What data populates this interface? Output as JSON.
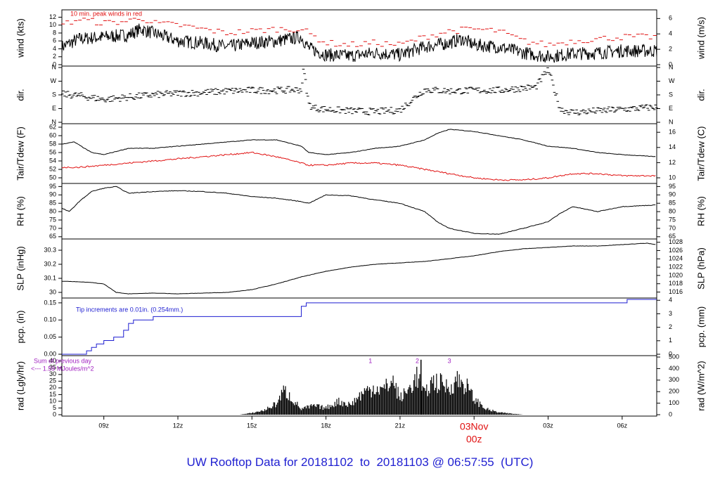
{
  "footer_title": "UW Rooftop Data for 20181102  to  20181103 @ 06:57:55  (UTC)",
  "colors": {
    "frame": "#000000",
    "series_main": "#000000",
    "dewpoint": "#e01010",
    "peak": "#e01010",
    "precip": "#1f1fd1",
    "radiation_note": "#a020c0",
    "date_label": "#e01010",
    "title": "#1f1fd1"
  },
  "x_axis": {
    "start_hour": 7.3,
    "end_hour": 31.4,
    "ticks": [
      {
        "hour": 9,
        "label": "09z"
      },
      {
        "hour": 12,
        "label": "12z"
      },
      {
        "hour": 15,
        "label": "15z"
      },
      {
        "hour": 18,
        "label": "18z"
      },
      {
        "hour": 21,
        "label": "21z"
      },
      {
        "hour": 27,
        "label": "03z"
      },
      {
        "hour": 30,
        "label": "06z"
      }
    ],
    "date_marker": {
      "hour": 24,
      "line1": "03Nov",
      "line2": "00z"
    }
  },
  "chart_data": [
    {
      "type": "line",
      "id": "wind",
      "ylabel_left": "wind (kts)",
      "ylabel_right": "wind (m/s)",
      "ylim": [
        0,
        13.5
      ],
      "left_ticks": [
        0,
        2,
        4,
        6,
        8,
        10,
        12
      ],
      "right_ticks": [
        0,
        2,
        4,
        6
      ],
      "annotation": "10 min. peak winds in red",
      "series": [
        {
          "name": "wind",
          "x": [
            7.3,
            8,
            9,
            10,
            10.5,
            11,
            11.5,
            12,
            13,
            14,
            15,
            16,
            16.5,
            17,
            17.3,
            18,
            19,
            20,
            21,
            22,
            22.5,
            23,
            23.5,
            24,
            25,
            26,
            27,
            28,
            29,
            30,
            31.4
          ],
          "y": [
            4.5,
            6.5,
            7,
            7.5,
            9,
            8,
            7,
            6,
            5.5,
            4.5,
            5.5,
            6,
            6.5,
            7,
            4.2,
            2.5,
            2.2,
            3,
            2.5,
            4.5,
            5,
            5.5,
            6.5,
            5,
            4.5,
            3,
            2,
            2.8,
            3,
            3.5,
            3.5
          ]
        },
        {
          "name": "peak",
          "x": [
            7.3,
            8,
            9,
            10,
            10.5,
            11,
            12,
            13,
            14,
            15,
            16,
            17,
            18,
            19,
            20,
            21,
            22,
            23,
            24,
            25,
            26,
            27,
            28,
            29,
            30,
            31.4
          ],
          "y": [
            10,
            11.5,
            10.5,
            11,
            12,
            10.5,
            10,
            9,
            8,
            8.5,
            9,
            9,
            5.5,
            5,
            5.5,
            5,
            7,
            8.5,
            9,
            8.5,
            6,
            5,
            6,
            6.5,
            7,
            7
          ]
        }
      ]
    },
    {
      "type": "scatter",
      "id": "dir",
      "ylabel_left": "dir.",
      "ylabel_right": "dir.",
      "ylim": [
        0,
        360
      ],
      "left_ticks": [
        {
          "v": 0,
          "l": "N"
        },
        {
          "v": 90,
          "l": "E"
        },
        {
          "v": 180,
          "l": "S"
        },
        {
          "v": 270,
          "l": "W"
        },
        {
          "v": 360,
          "l": "N"
        }
      ],
      "right_ticks": [
        {
          "v": 0,
          "l": "N"
        },
        {
          "v": 90,
          "l": "E"
        },
        {
          "v": 180,
          "l": "S"
        },
        {
          "v": 270,
          "l": "W"
        },
        {
          "v": 360,
          "l": "N"
        }
      ],
      "series": [
        {
          "name": "direction",
          "x": [
            7.3,
            8,
            9,
            10,
            11,
            12,
            13,
            14,
            15,
            16,
            17,
            17.1,
            17.3,
            17.5,
            18,
            19,
            20,
            21,
            21.5,
            22,
            23,
            24,
            25,
            26,
            26.5,
            27,
            27.5,
            28,
            29,
            30,
            31.4
          ],
          "y": [
            185,
            175,
            150,
            165,
            180,
            190,
            195,
            205,
            210,
            210,
            215,
            350,
            120,
            95,
            85,
            75,
            70,
            80,
            150,
            215,
            205,
            210,
            210,
            225,
            230,
            350,
            85,
            65,
            75,
            85,
            100
          ]
        }
      ]
    },
    {
      "type": "line",
      "id": "temp",
      "ylabel_left": "Tair/Tdew (F)",
      "ylabel_right": "Tair/Tdew (C)",
      "ylim": [
        49,
        62.5
      ],
      "left_ticks": [
        50,
        52,
        54,
        56,
        58,
        60,
        62
      ],
      "right_ticks": [
        10,
        12,
        14,
        16
      ],
      "series": [
        {
          "name": "Tair",
          "x": [
            7.3,
            7.8,
            8.5,
            9,
            10,
            11,
            12,
            13,
            14,
            15,
            16,
            17,
            17.3,
            18,
            19,
            20,
            21,
            22,
            22.5,
            23,
            24,
            25,
            26,
            27,
            28,
            29,
            30,
            31.4
          ],
          "y": [
            58,
            58.5,
            56,
            55.5,
            57,
            57,
            57.5,
            58,
            58.5,
            59,
            59,
            57.5,
            56,
            55.5,
            56,
            57,
            57.5,
            59,
            60.5,
            61.5,
            61,
            60,
            59,
            57.5,
            57,
            56,
            55.5,
            55
          ]
        },
        {
          "name": "Tdew",
          "x": [
            7.3,
            8,
            9,
            10,
            11,
            12,
            13,
            14,
            15,
            16,
            17,
            17.3,
            18,
            19,
            20,
            21,
            22,
            23,
            24,
            25,
            26,
            27,
            28,
            29,
            30,
            31.4
          ],
          "y": [
            52.5,
            52.5,
            53,
            53.5,
            54,
            54.5,
            55,
            55.5,
            56,
            55,
            53.5,
            53,
            53,
            53.5,
            53.5,
            53,
            52,
            51,
            50,
            49.5,
            49.5,
            50,
            51,
            51,
            50.5,
            50.5
          ]
        }
      ]
    },
    {
      "type": "line",
      "id": "rh",
      "ylabel_left": "RH (%)",
      "ylabel_right": "RH (%)",
      "ylim": [
        64.5,
        96
      ],
      "left_ticks": [
        65,
        70,
        75,
        80,
        85,
        90,
        95
      ],
      "right_ticks": [
        65,
        70,
        75,
        80,
        85,
        90,
        95
      ],
      "series": [
        {
          "name": "RH",
          "x": [
            7.3,
            7.6,
            8,
            8.5,
            9,
            9.5,
            10,
            11,
            12,
            13,
            14,
            15,
            16,
            17,
            17.3,
            18,
            19,
            20,
            21,
            22,
            22.5,
            23,
            24,
            25,
            26,
            27,
            27.5,
            28,
            29,
            30,
            31.4
          ],
          "y": [
            82,
            80,
            86,
            92,
            94,
            95,
            91,
            92,
            92.5,
            92,
            91,
            89,
            88,
            86,
            85,
            90,
            89.5,
            87,
            85,
            80,
            74,
            70,
            67,
            66.5,
            70,
            74,
            79,
            83,
            80,
            83,
            84
          ]
        }
      ]
    },
    {
      "type": "line",
      "id": "slp",
      "ylabel_left": "SLP (inHg)",
      "ylabel_right": "SLP (hPa)",
      "ylim": [
        29.97,
        30.37
      ],
      "left_ticks": [
        30.0,
        30.1,
        30.2,
        30.3
      ],
      "right_ticks": [
        1016,
        1018,
        1020,
        1022,
        1024,
        1026,
        1028
      ],
      "series": [
        {
          "name": "SLP",
          "x": [
            7.3,
            8,
            8.5,
            9,
            9.5,
            10,
            11,
            12,
            13,
            14,
            15,
            16,
            17,
            18,
            19,
            20,
            21,
            22,
            23,
            24,
            25,
            26,
            27,
            28,
            29,
            30,
            31,
            31.4
          ],
          "y": [
            30.08,
            30.075,
            30.07,
            30.06,
            30.0,
            29.99,
            29.995,
            29.99,
            29.995,
            30.0,
            30.02,
            30.06,
            30.11,
            30.15,
            30.18,
            30.2,
            30.21,
            30.22,
            30.24,
            30.26,
            30.29,
            30.31,
            30.32,
            30.33,
            30.33,
            30.34,
            30.35,
            30.34
          ]
        }
      ]
    },
    {
      "type": "line",
      "id": "pcp",
      "ylabel_left": "pcp. (in)",
      "ylabel_right": "pcp. (mm)",
      "ylim": [
        0,
        0.16
      ],
      "left_ticks": [
        {
          "v": 0,
          "l": "0.00"
        },
        {
          "v": 0.05,
          "l": "0.05"
        },
        {
          "v": 0.1,
          "l": "0.10"
        },
        {
          "v": 0.15,
          "l": "0.15"
        }
      ],
      "right_ticks": [
        0,
        1,
        2,
        3,
        4
      ],
      "annotation": "Tip increments are 0.01in. (0.254mm.)",
      "series": [
        {
          "name": "precip",
          "x": [
            7.3,
            8.3,
            8.5,
            8.7,
            9.0,
            9.4,
            9.8,
            10.0,
            10.2,
            11.0,
            17.0,
            17.2,
            30.2,
            31.4
          ],
          "y": [
            0,
            0.01,
            0.02,
            0.03,
            0.04,
            0.05,
            0.07,
            0.09,
            0.1,
            0.11,
            0.14,
            0.15,
            0.16,
            0.16
          ]
        }
      ]
    },
    {
      "type": "area",
      "id": "rad",
      "ylabel_left": "rad (Lgly/hr)",
      "ylabel_right": "rad (W/m^2)",
      "ylim": [
        0,
        43
      ],
      "left_ticks": [
        0,
        5,
        10,
        15,
        20,
        25,
        30,
        35,
        40
      ],
      "right_ticks": [
        0,
        100,
        200,
        300,
        400,
        500
      ],
      "annotation_line1": "Sum of previous day",
      "annotation_line2": "<--- 1.59 MJoules/m^2",
      "markers": [
        {
          "hour": 19.8,
          "label": "1"
        },
        {
          "hour": 21.7,
          "label": "2"
        },
        {
          "hour": 23.0,
          "label": "3"
        }
      ],
      "series": [
        {
          "name": "radiation",
          "x": [
            7.3,
            14.5,
            15,
            15.5,
            16,
            16.3,
            16.6,
            17,
            17.5,
            18,
            18.5,
            19,
            19.5,
            20,
            20.3,
            20.7,
            21,
            21.3,
            21.7,
            22,
            22.3,
            22.7,
            23,
            23.3,
            23.7,
            24,
            24.5,
            25,
            26,
            31.4
          ],
          "y": [
            0,
            0,
            1.5,
            4,
            10,
            22,
            15,
            5,
            8,
            6,
            12,
            9,
            20,
            25,
            22,
            31,
            15,
            21,
            35,
            18,
            30,
            28,
            24,
            32,
            26,
            14,
            5,
            2,
            0,
            0
          ]
        }
      ]
    }
  ]
}
